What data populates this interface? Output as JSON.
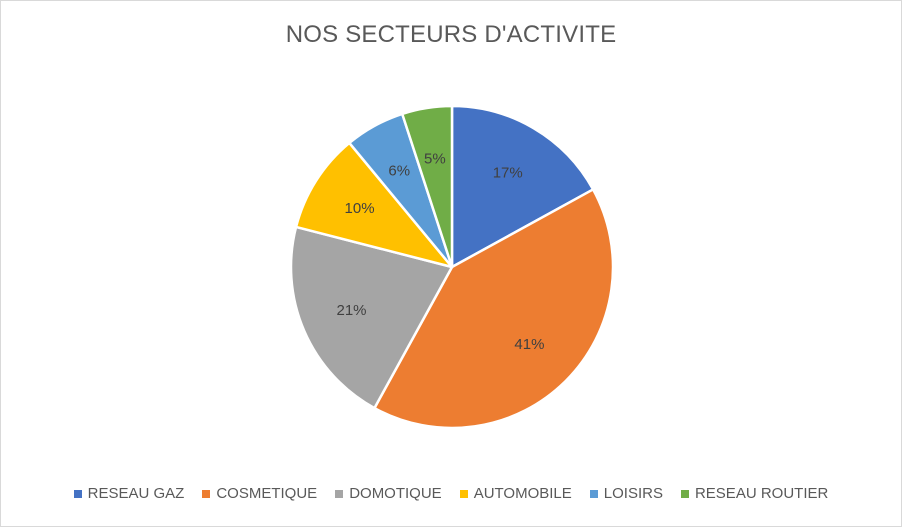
{
  "chart_data": {
    "type": "pie",
    "title": "NOS SECTEURS D'ACTIVITE",
    "categories": [
      "RESEAU GAZ",
      "COSMETIQUE",
      "DOMOTIQUE",
      "AUTOMOBILE",
      "LOISIRS",
      "RESEAU ROUTIER"
    ],
    "values": [
      17,
      41,
      21,
      10,
      6,
      5
    ],
    "labels": [
      "17%",
      "41%",
      "21%",
      "10%",
      "6%",
      "5%"
    ],
    "colors": [
      "#4472c4",
      "#ed7d31",
      "#a5a5a5",
      "#ffc000",
      "#5b9bd5",
      "#70ad47"
    ],
    "legend_position": "bottom"
  }
}
